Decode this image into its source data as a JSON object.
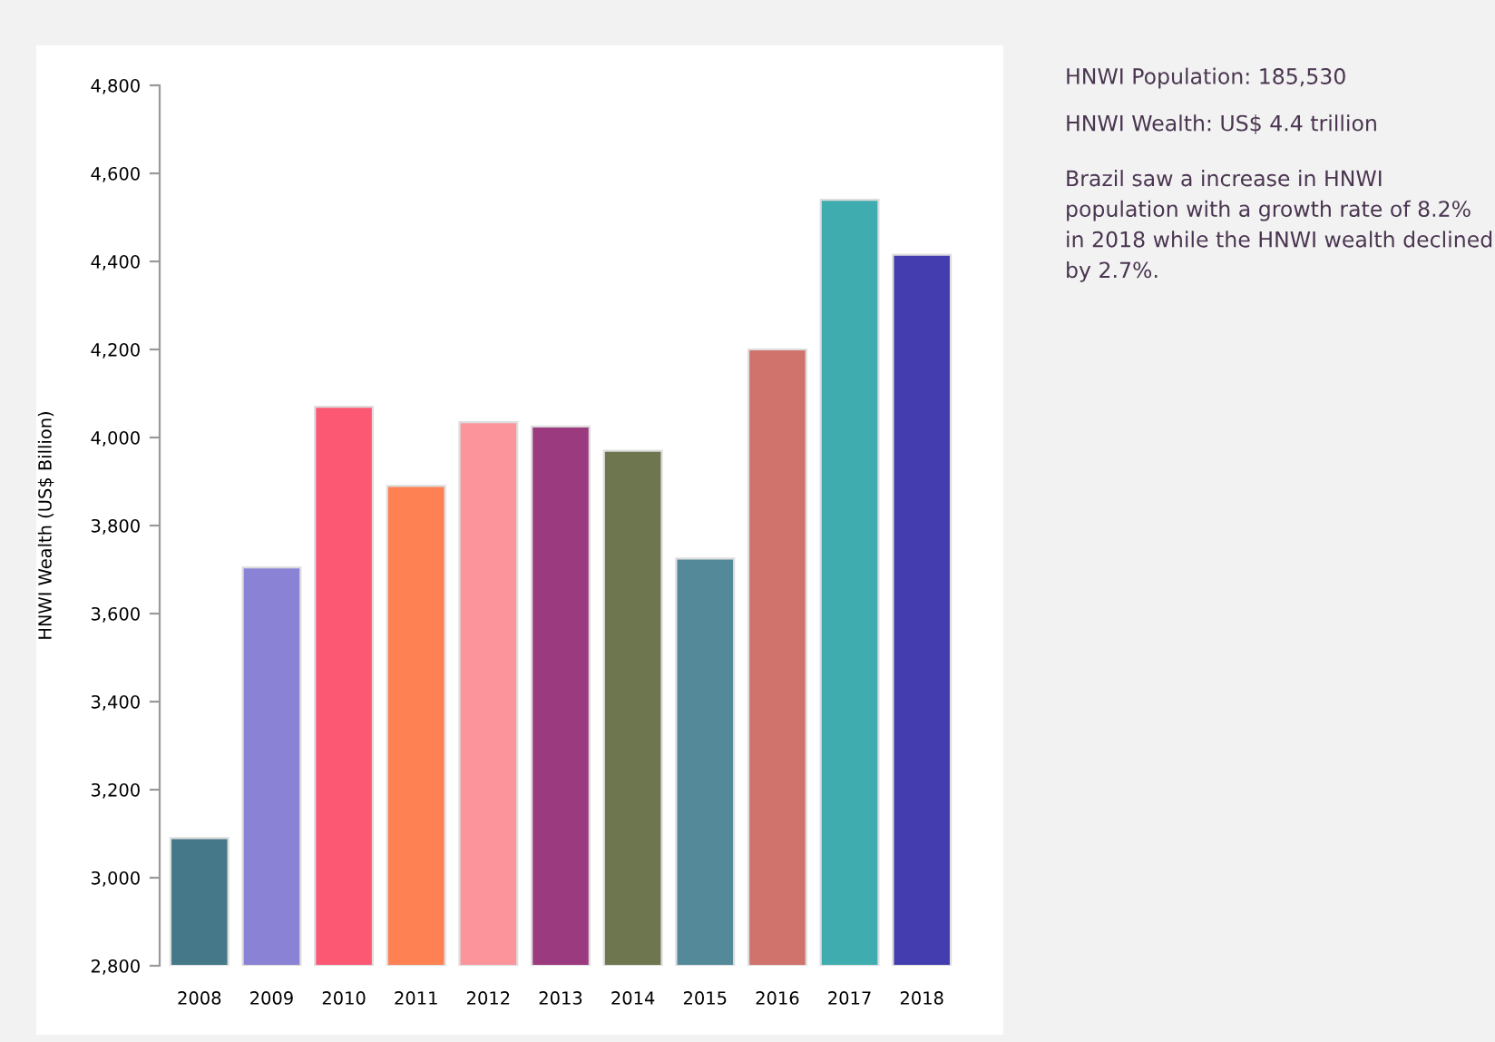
{
  "chart_data": {
    "type": "bar",
    "ylabel": "HNWI Wealth (US$ Billion)",
    "categories": [
      "2008",
      "2009",
      "2010",
      "2011",
      "2012",
      "2013",
      "2014",
      "2015",
      "2016",
      "2017",
      "2018"
    ],
    "values": [
      3090,
      3705,
      4070,
      3890,
      4035,
      4025,
      3970,
      3725,
      4200,
      4540,
      4415
    ],
    "colors": [
      "#457888",
      "#8a83d5",
      "#fc5773",
      "#fd8152",
      "#fc959b",
      "#9c3a7f",
      "#6d764f",
      "#548999",
      "#d0736d",
      "#3fadaf",
      "#433db0"
    ],
    "ylim": [
      2800,
      4800
    ],
    "yticks": [
      {
        "value": 2800,
        "label": "2,800"
      },
      {
        "value": 3000,
        "label": "3,000"
      },
      {
        "value": 3200,
        "label": "3,200"
      },
      {
        "value": 3400,
        "label": "3,400"
      },
      {
        "value": 3600,
        "label": "3,600"
      },
      {
        "value": 3800,
        "label": "3,800"
      },
      {
        "value": 4000,
        "label": "4,000"
      },
      {
        "value": 4200,
        "label": "4,200"
      },
      {
        "value": 4400,
        "label": "4,400"
      },
      {
        "value": 4600,
        "label": "4,600"
      },
      {
        "value": 4800,
        "label": "4,800"
      }
    ],
    "grid": false,
    "legend": false,
    "annotations": [
      "HNWI Population: 185,530",
      "HNWI Wealth: US$ 4.4 trillion",
      "Brazil saw a increase in HNWI population with a growth rate of 8.2% in 2018 while the HNWI wealth declined by 2.7%."
    ]
  }
}
